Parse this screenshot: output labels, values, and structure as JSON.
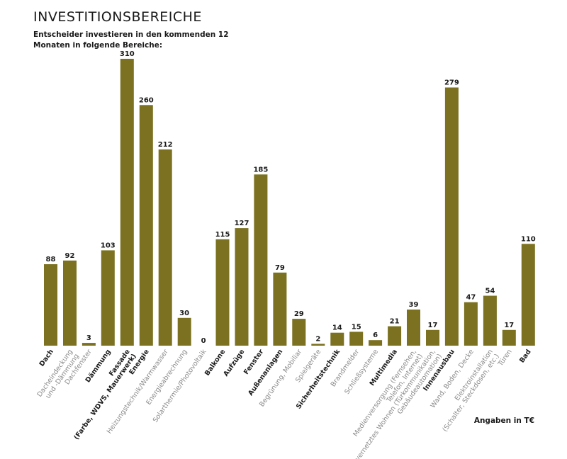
{
  "header": {
    "title": "INVESTITIONSBEREICHE",
    "subtitle": "Entscheider investieren in den kommenden 12 Monaten in folgende Bereiche:",
    "footnote": "Angaben in T€"
  },
  "colors": {
    "bar": "#7b7120",
    "text": "#1a1a1a",
    "subtext": "#8a8a8a"
  },
  "chart_data": {
    "type": "bar",
    "title": "INVESTITIONSBEREICHE",
    "subtitle": "Entscheider investieren in den kommenden 12 Monaten in folgende Bereiche:",
    "unit": "Angaben in T€",
    "ylim": [
      0,
      310
    ],
    "grid": false,
    "categories": [
      {
        "label": [
          "Dach"
        ],
        "bold": true,
        "value": 88
      },
      {
        "label": [
          "Dacheindeckung",
          "und -Dämmung"
        ],
        "bold": false,
        "value": 92
      },
      {
        "label": [
          "Dachfenster"
        ],
        "bold": false,
        "value": 3
      },
      {
        "label": [
          "Dämmung"
        ],
        "bold": true,
        "value": 103
      },
      {
        "label": [
          "Fassade",
          "(Farbe, WDVS, Mauerwerk)"
        ],
        "bold": true,
        "value": 310
      },
      {
        "label": [
          "Energie"
        ],
        "bold": true,
        "value": 260
      },
      {
        "label": [
          "Heizungstechnik/Warmwasser"
        ],
        "bold": false,
        "value": 212
      },
      {
        "label": [
          "Energieabrechnung"
        ],
        "bold": false,
        "value": 30
      },
      {
        "label": [
          "Solarthermie/Photovoltaik"
        ],
        "bold": false,
        "value": 0
      },
      {
        "label": [
          "Balkone"
        ],
        "bold": true,
        "value": 115
      },
      {
        "label": [
          "Aufzüge"
        ],
        "bold": true,
        "value": 127
      },
      {
        "label": [
          "Fenster"
        ],
        "bold": true,
        "value": 185
      },
      {
        "label": [
          "Außenanlagen"
        ],
        "bold": true,
        "value": 79
      },
      {
        "label": [
          "Begrünung, Mobiliar"
        ],
        "bold": false,
        "value": 29
      },
      {
        "label": [
          "Spielgeräte"
        ],
        "bold": false,
        "value": 2
      },
      {
        "label": [
          "Sicherheitstechnik"
        ],
        "bold": true,
        "value": 14
      },
      {
        "label": [
          "Brandmelder"
        ],
        "bold": false,
        "value": 15
      },
      {
        "label": [
          "Schließsysteme"
        ],
        "bold": false,
        "value": 6
      },
      {
        "label": [
          "Multimedia"
        ],
        "bold": true,
        "value": 21
      },
      {
        "label": [
          "Medienversorgung (Fernsehen,",
          "Telefon, Internet)"
        ],
        "bold": false,
        "value": 39
      },
      {
        "label": [
          "vernetztes Wohnen (Türkommunikation,",
          "Gebäudeautomation)"
        ],
        "bold": false,
        "value": 17
      },
      {
        "label": [
          "Innenausbau"
        ],
        "bold": true,
        "value": 279
      },
      {
        "label": [
          "Wand, Boden, Decke"
        ],
        "bold": false,
        "value": 47
      },
      {
        "label": [
          "Elektroinstallation",
          "(Schalter, Steckdosen, etc.)"
        ],
        "bold": false,
        "value": 54
      },
      {
        "label": [
          "Türen"
        ],
        "bold": false,
        "value": 17
      },
      {
        "label": [
          "Bad"
        ],
        "bold": true,
        "value": 110
      }
    ]
  }
}
